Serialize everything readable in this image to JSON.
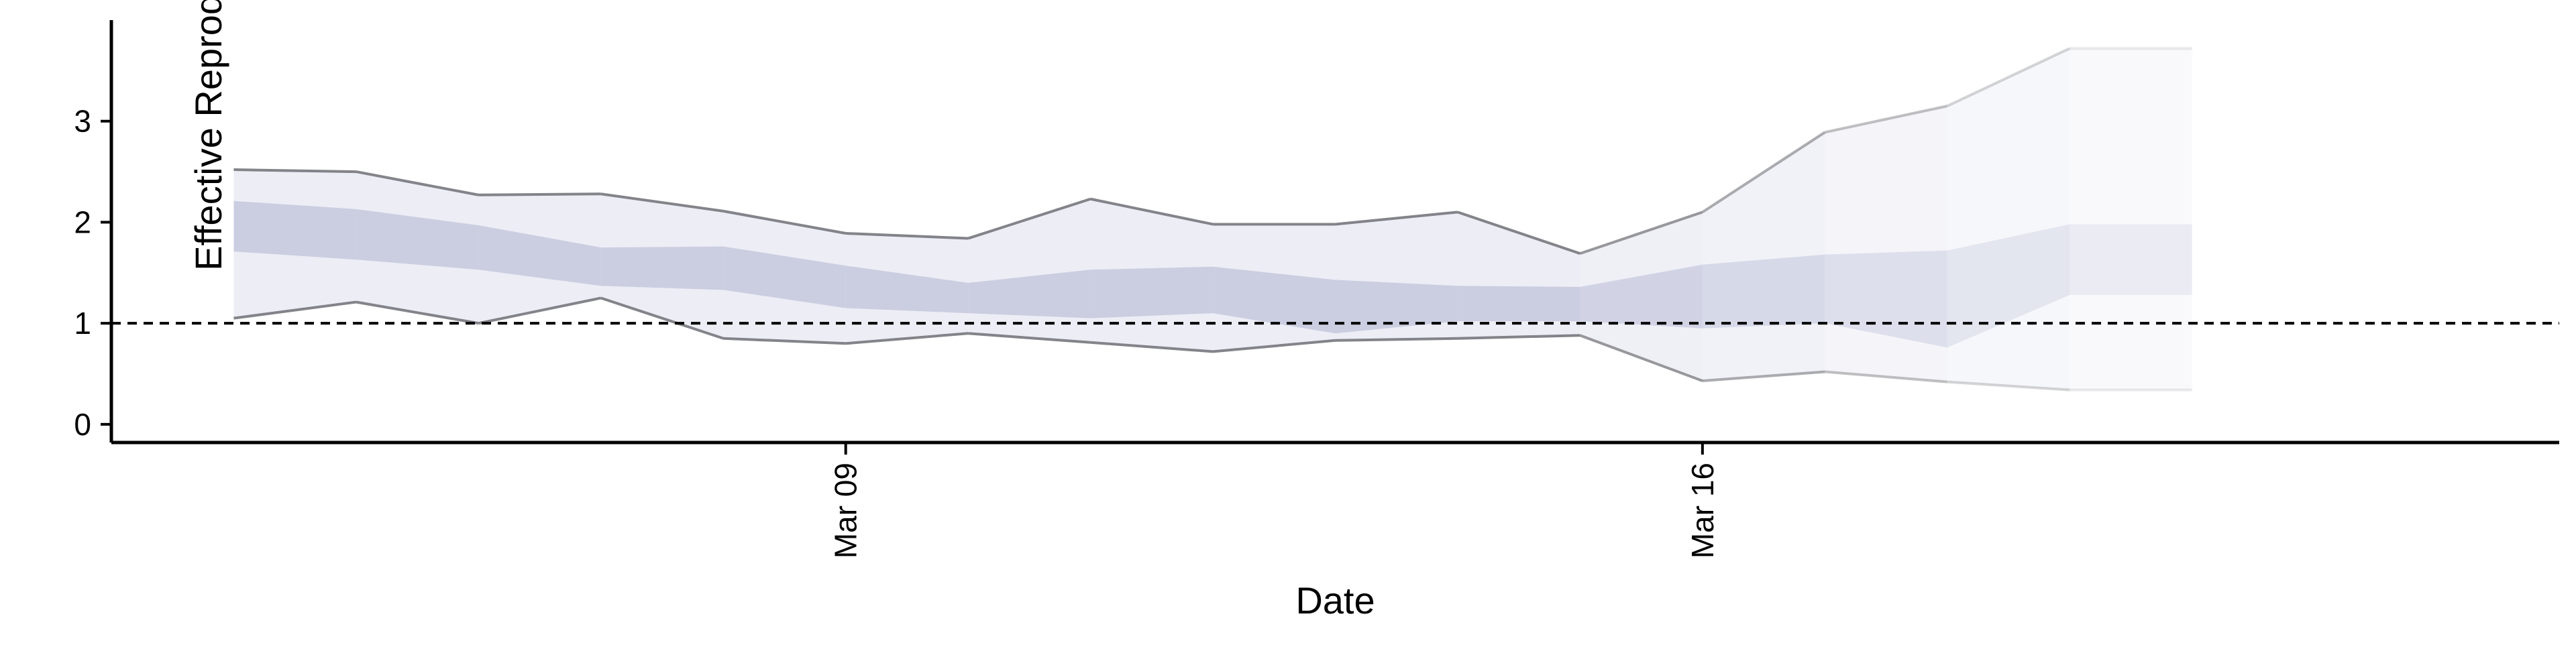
{
  "chart_data": {
    "type": "area",
    "title": "",
    "xlabel": "Date",
    "ylabel": "Effective Reproduction no.",
    "ylim": [
      0,
      4
    ],
    "yticks": [
      0,
      1,
      2,
      3
    ],
    "xticks": [
      {
        "date": "2020-03-09",
        "label": "Mar 09"
      },
      {
        "date": "2020-03-16",
        "label": "Mar 16"
      }
    ],
    "xlim": [
      "2020-03-03",
      "2020-03-23"
    ],
    "reference_line": {
      "y": 1,
      "style": "dashed"
    },
    "dates": [
      "2020-03-04",
      "2020-03-05",
      "2020-03-06",
      "2020-03-07",
      "2020-03-08",
      "2020-03-09",
      "2020-03-10",
      "2020-03-11",
      "2020-03-12",
      "2020-03-13",
      "2020-03-14",
      "2020-03-15",
      "2020-03-16",
      "2020-03-17",
      "2020-03-18",
      "2020-03-19",
      "2020-03-20"
    ],
    "upper_90": [
      2.52,
      2.5,
      2.27,
      2.28,
      2.11,
      1.89,
      1.84,
      2.23,
      1.98,
      1.98,
      2.1,
      1.69,
      2.1,
      2.89,
      3.15,
      3.72,
      3.72
    ],
    "lower_90": [
      1.05,
      1.21,
      1.0,
      1.25,
      0.85,
      0.8,
      0.9,
      0.81,
      0.72,
      0.83,
      0.85,
      0.88,
      0.43,
      0.52,
      0.42,
      0.34,
      0.34
    ],
    "upper_50": [
      2.21,
      2.13,
      1.97,
      1.75,
      1.76,
      1.57,
      1.4,
      1.53,
      1.56,
      1.43,
      1.37,
      1.36,
      1.58,
      1.68,
      1.72,
      1.98,
      1.98
    ],
    "lower_50": [
      1.71,
      1.63,
      1.53,
      1.37,
      1.33,
      1.15,
      1.1,
      1.05,
      1.1,
      0.9,
      1.02,
      1.02,
      0.95,
      1.0,
      0.76,
      1.28,
      1.28
    ],
    "colors": {
      "band_90": "#d6d8e8",
      "band_50": "#b8bcd6",
      "bound_line": "#6f6f75",
      "reference": "#000000"
    }
  }
}
